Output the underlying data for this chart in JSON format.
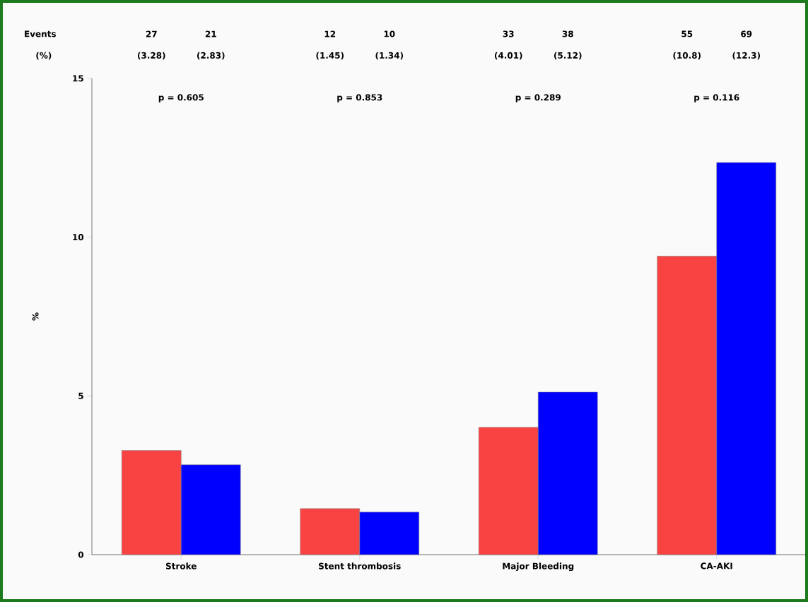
{
  "chart_data": {
    "type": "bar",
    "ylabel": "%",
    "categories": [
      "Stroke",
      "Stent thrombosis",
      "Major Bleeding",
      "CA-AKI"
    ],
    "series": [
      {
        "color": "#f94343",
        "values": [
          3.28,
          1.45,
          4.01,
          9.4
        ]
      },
      {
        "color": "#0000ff",
        "values": [
          2.83,
          1.34,
          5.12,
          12.35
        ]
      }
    ],
    "ylim": [
      0,
      15
    ],
    "yticks": [
      0,
      5,
      10,
      15
    ],
    "annotations": [
      "Events",
      "(%)",
      "27",
      "(3.28)",
      "21",
      "(2.83)",
      "12",
      "(1.45)",
      "10",
      "(1.34)",
      "33",
      "(4.01)",
      "38",
      "(5.12)",
      "55",
      "(10.8)",
      "69",
      "(12.3)",
      "p = 0.605",
      "p = 0.853",
      "p = 0.289",
      "p = 0.116"
    ]
  }
}
